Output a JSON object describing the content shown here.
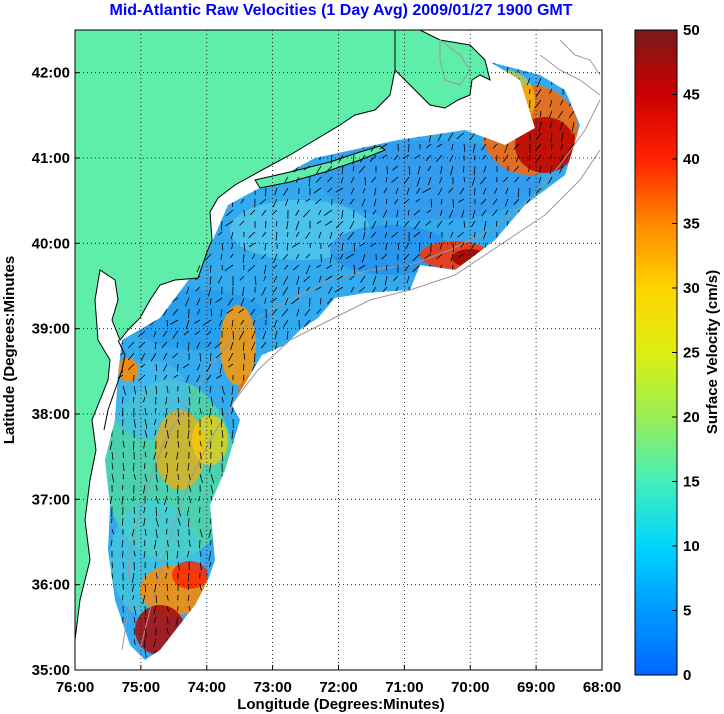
{
  "title": "Mid-Atlantic Raw Velocities (1 Day Avg) 2009/01/27 1900 GMT",
  "map": {
    "xlabel": "Longitude (Degrees:Minutes)",
    "ylabel": "Latitude (Degrees:Minutes",
    "lon_range": [
      -76,
      -68
    ],
    "lat_range": [
      35,
      42.5
    ],
    "x_ticks": [
      {
        "value": -76,
        "label": "76:00"
      },
      {
        "value": -75,
        "label": "75:00"
      },
      {
        "value": -74,
        "label": "74:00"
      },
      {
        "value": -73,
        "label": "73:00"
      },
      {
        "value": -72,
        "label": "72:00"
      },
      {
        "value": -71,
        "label": "71:00"
      },
      {
        "value": -70,
        "label": "70:00"
      },
      {
        "value": -69,
        "label": "69:00"
      },
      {
        "value": -68,
        "label": "68:00"
      }
    ],
    "y_ticks": [
      {
        "value": 35,
        "label": "35:00"
      },
      {
        "value": 36,
        "label": "36:00"
      },
      {
        "value": 37,
        "label": "37:00"
      },
      {
        "value": 38,
        "label": "38:00"
      },
      {
        "value": 39,
        "label": "39:00"
      },
      {
        "value": 40,
        "label": "40:00"
      },
      {
        "value": 41,
        "label": "41:00"
      },
      {
        "value": 42,
        "label": "42:00"
      }
    ],
    "grid": "dotted",
    "land_color": "#5eeeaa",
    "coastline_color": "#000000",
    "bathymetry_color": "#999999"
  },
  "colorbar": {
    "label": "Surface Velocity (cm/s)",
    "range": [
      0,
      50
    ],
    "ticks": [
      {
        "value": 0,
        "label": "0"
      },
      {
        "value": 5,
        "label": "5"
      },
      {
        "value": 10,
        "label": "10"
      },
      {
        "value": 15,
        "label": "15"
      },
      {
        "value": 20,
        "label": "20"
      },
      {
        "value": 25,
        "label": "25"
      },
      {
        "value": 30,
        "label": "30"
      },
      {
        "value": 35,
        "label": "35"
      },
      {
        "value": 40,
        "label": "40"
      },
      {
        "value": 45,
        "label": "45"
      },
      {
        "value": 50,
        "label": "50"
      }
    ],
    "colormap": "jet"
  },
  "chart_data": {
    "type": "heatmap",
    "title": "Mid-Atlantic Raw Velocities (1 Day Avg) 2009/01/27 1900 GMT",
    "xlabel": "Longitude (Degrees:Minutes)",
    "ylabel": "Latitude (Degrees:Minutes",
    "xlim": [
      -76,
      -68
    ],
    "ylim": [
      35,
      42.5
    ],
    "value_label": "Surface Velocity (cm/s)",
    "value_range": [
      0,
      50
    ],
    "hotspots": [
      {
        "lon": -68.9,
        "lat": 41.1,
        "speed": 48
      },
      {
        "lon": -69.2,
        "lat": 41.5,
        "speed": 40
      },
      {
        "lon": -70.1,
        "lat": 39.85,
        "speed": 45
      },
      {
        "lon": -74.6,
        "lat": 35.35,
        "speed": 48
      },
      {
        "lon": -74.9,
        "lat": 35.85,
        "speed": 32
      },
      {
        "lon": -74.4,
        "lat": 36.2,
        "speed": 34
      },
      {
        "lon": -73.6,
        "lat": 38.8,
        "speed": 32
      },
      {
        "lon": -74.7,
        "lat": 38.5,
        "speed": 35
      },
      {
        "lon": -74.2,
        "lat": 37.8,
        "speed": 30
      },
      {
        "lon": -73.4,
        "lat": 38.1,
        "speed": 40
      }
    ]
  }
}
